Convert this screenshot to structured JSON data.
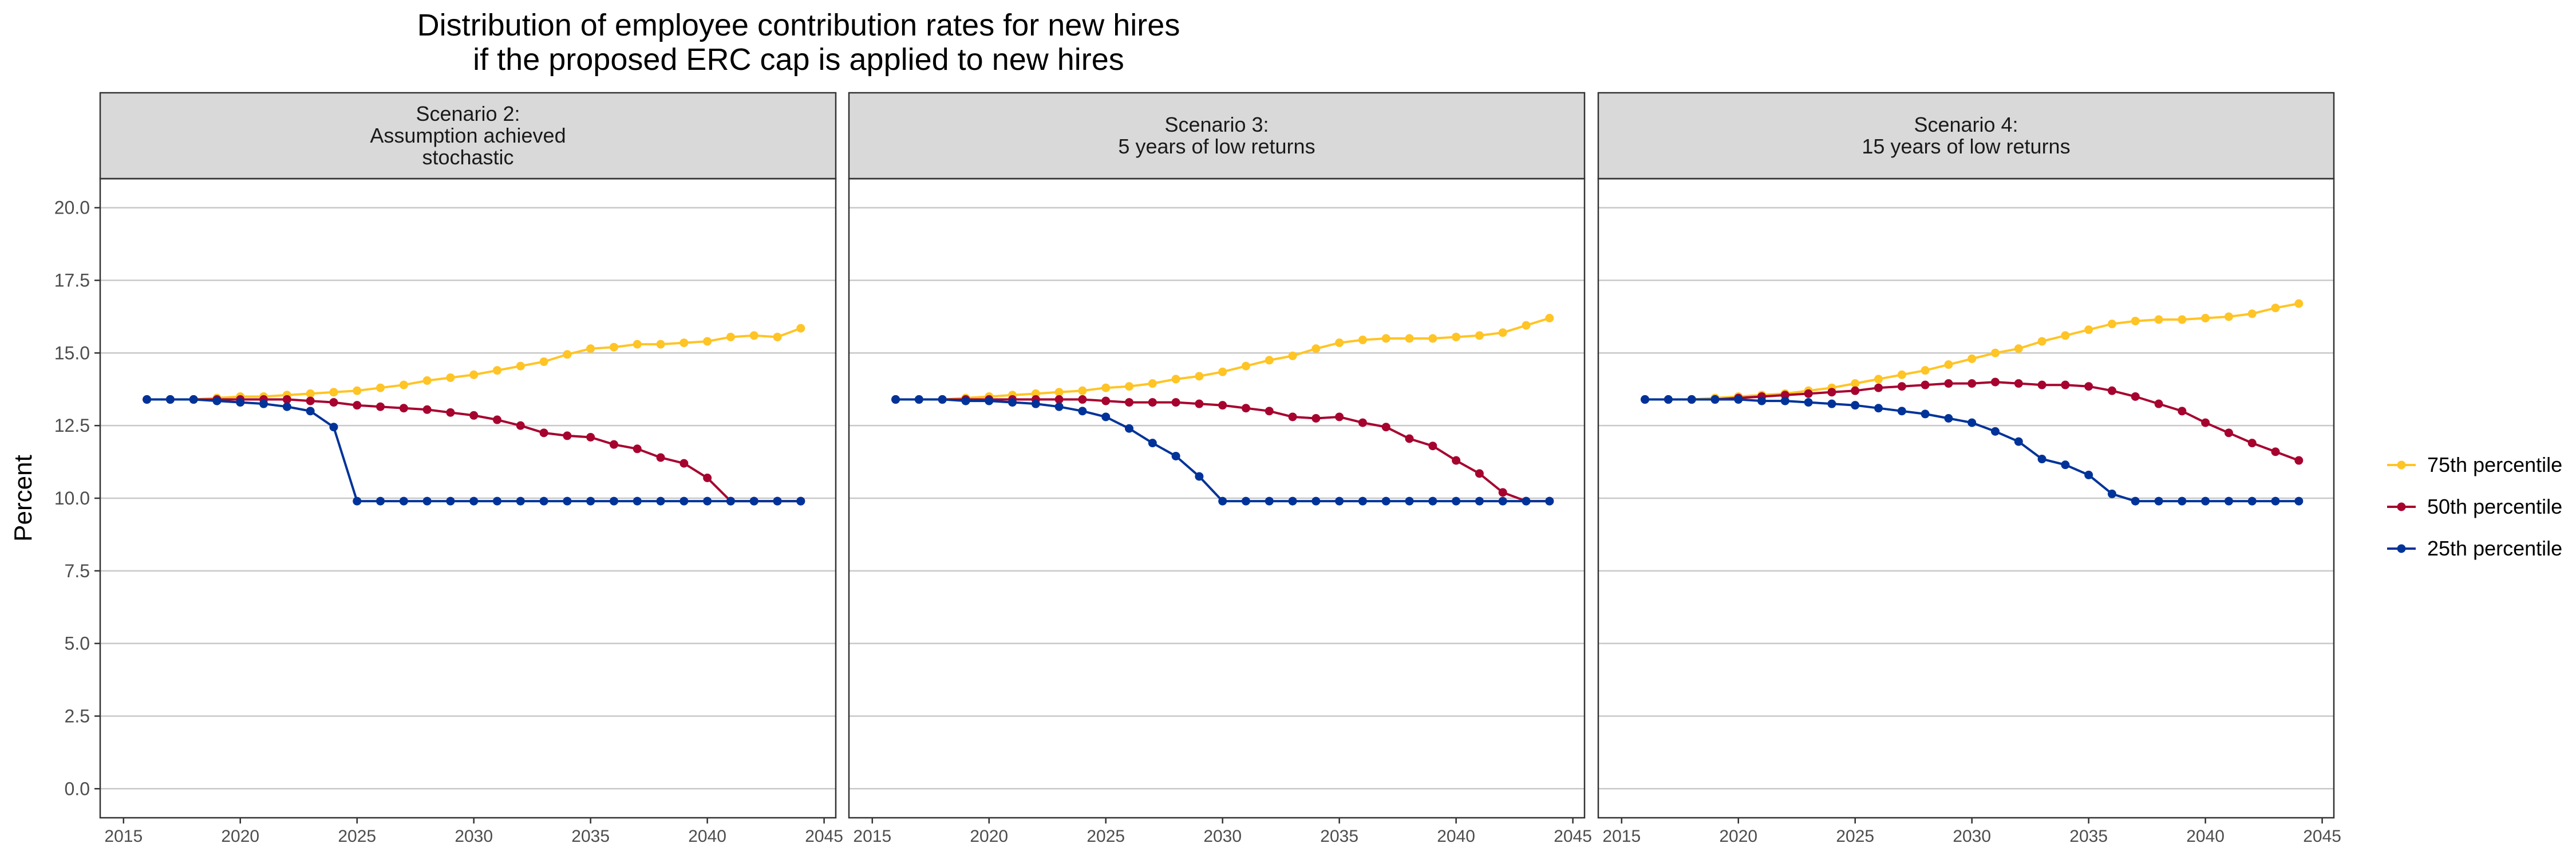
{
  "chart_data": {
    "type": "line",
    "title_lines": [
      "Distribution of employee contribution rates for new hires",
      "if the proposed ERC cap is applied to new hires"
    ],
    "ylabel": "Percent",
    "xlabel": "",
    "ylim": [
      -1,
      21
    ],
    "xlim": [
      2014,
      2045.5
    ],
    "yticks": [
      0.0,
      2.5,
      5.0,
      7.5,
      10.0,
      12.5,
      15.0,
      17.5,
      20.0
    ],
    "ytick_labels": [
      "0.0",
      "2.5",
      "5.0",
      "7.5",
      "10.0",
      "12.5",
      "15.0",
      "17.5",
      "20.0"
    ],
    "xticks": [
      2015,
      2020,
      2025,
      2030,
      2035,
      2040,
      2045
    ],
    "xtick_labels": [
      "2015",
      "2020",
      "2025",
      "2030",
      "2035",
      "2040",
      "2045"
    ],
    "grid": "horizontal",
    "legend_position": "right",
    "x": [
      2016,
      2017,
      2018,
      2019,
      2020,
      2021,
      2022,
      2023,
      2024,
      2025,
      2026,
      2027,
      2028,
      2029,
      2030,
      2031,
      2032,
      2033,
      2034,
      2035,
      2036,
      2037,
      2038,
      2039,
      2040,
      2041,
      2042,
      2043,
      2044
    ],
    "legend": [
      {
        "key": "p75",
        "label": "75th percentile",
        "color": "#FFC425"
      },
      {
        "key": "p50",
        "label": "50th percentile",
        "color": "#A6032F"
      },
      {
        "key": "p25",
        "label": "25th percentile",
        "color": "#003399"
      }
    ],
    "panels": [
      {
        "strip_lines": [
          "Scenario 2:",
          "Assumption achieved",
          "stochastic"
        ],
        "series": {
          "p75": [
            13.4,
            13.4,
            13.4,
            13.45,
            13.5,
            13.5,
            13.55,
            13.6,
            13.65,
            13.7,
            13.8,
            13.9,
            14.05,
            14.15,
            14.25,
            14.4,
            14.55,
            14.7,
            14.95,
            15.15,
            15.2,
            15.3,
            15.3,
            15.35,
            15.4,
            15.55,
            15.6,
            15.55,
            15.85
          ],
          "p50": [
            13.4,
            13.4,
            13.4,
            13.4,
            13.4,
            13.4,
            13.4,
            13.35,
            13.3,
            13.2,
            13.15,
            13.1,
            13.05,
            12.95,
            12.85,
            12.7,
            12.5,
            12.25,
            12.15,
            12.1,
            11.85,
            11.7,
            11.4,
            11.2,
            10.7,
            9.9,
            9.9,
            9.9,
            9.9
          ],
          "p25": [
            13.4,
            13.4,
            13.4,
            13.35,
            13.3,
            13.25,
            13.15,
            13.0,
            12.45,
            9.9,
            9.9,
            9.9,
            9.9,
            9.9,
            9.9,
            9.9,
            9.9,
            9.9,
            9.9,
            9.9,
            9.9,
            9.9,
            9.9,
            9.9,
            9.9,
            9.9,
            9.9,
            9.9,
            9.9
          ]
        }
      },
      {
        "strip_lines": [
          "Scenario 3:",
          "5 years of low returns"
        ],
        "series": {
          "p75": [
            13.4,
            13.4,
            13.4,
            13.45,
            13.5,
            13.55,
            13.6,
            13.65,
            13.7,
            13.8,
            13.85,
            13.95,
            14.1,
            14.2,
            14.35,
            14.55,
            14.75,
            14.9,
            15.15,
            15.35,
            15.45,
            15.5,
            15.5,
            15.5,
            15.55,
            15.6,
            15.7,
            15.95,
            16.2
          ],
          "p50": [
            13.4,
            13.4,
            13.4,
            13.4,
            13.4,
            13.4,
            13.4,
            13.4,
            13.4,
            13.35,
            13.3,
            13.3,
            13.3,
            13.25,
            13.2,
            13.1,
            13.0,
            12.8,
            12.75,
            12.8,
            12.6,
            12.45,
            12.05,
            11.8,
            11.3,
            10.85,
            10.2,
            9.9,
            9.9
          ],
          "p25": [
            13.4,
            13.4,
            13.4,
            13.35,
            13.35,
            13.3,
            13.25,
            13.15,
            13.0,
            12.8,
            12.4,
            11.9,
            11.45,
            10.75,
            9.9,
            9.9,
            9.9,
            9.9,
            9.9,
            9.9,
            9.9,
            9.9,
            9.9,
            9.9,
            9.9,
            9.9,
            9.9,
            9.9,
            9.9
          ]
        }
      },
      {
        "strip_lines": [
          "Scenario 4:",
          "15 years of low returns"
        ],
        "series": {
          "p75": [
            13.4,
            13.4,
            13.4,
            13.45,
            13.5,
            13.55,
            13.6,
            13.7,
            13.8,
            13.95,
            14.1,
            14.25,
            14.4,
            14.6,
            14.8,
            15.0,
            15.15,
            15.4,
            15.6,
            15.8,
            16.0,
            16.1,
            16.15,
            16.15,
            16.2,
            16.25,
            16.35,
            16.55,
            16.7
          ],
          "p50": [
            13.4,
            13.4,
            13.4,
            13.4,
            13.45,
            13.5,
            13.55,
            13.6,
            13.65,
            13.7,
            13.8,
            13.85,
            13.9,
            13.95,
            13.95,
            14.0,
            13.95,
            13.9,
            13.9,
            13.85,
            13.7,
            13.5,
            13.25,
            13.0,
            12.6,
            12.25,
            11.9,
            11.6,
            11.3
          ],
          "p25": [
            13.4,
            13.4,
            13.4,
            13.4,
            13.4,
            13.35,
            13.35,
            13.3,
            13.25,
            13.2,
            13.1,
            13.0,
            12.9,
            12.75,
            12.6,
            12.3,
            11.95,
            11.35,
            11.15,
            10.8,
            10.15,
            9.9,
            9.9,
            9.9,
            9.9,
            9.9,
            9.9,
            9.9,
            9.9
          ]
        }
      }
    ]
  }
}
